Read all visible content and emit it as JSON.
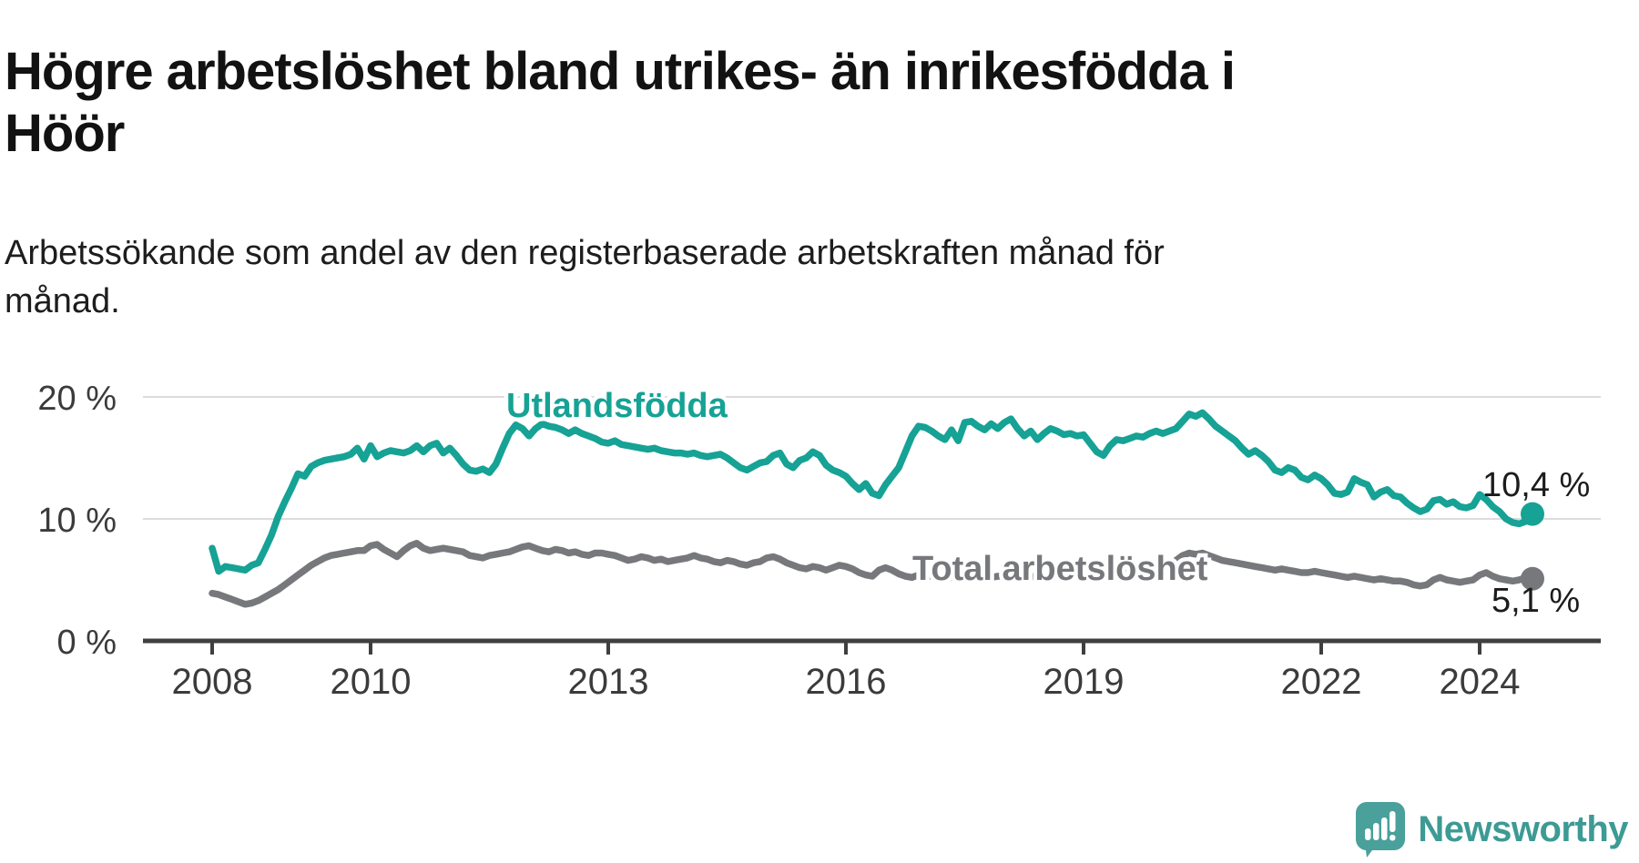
{
  "header": {
    "title": "Högre arbetslöshet bland utrikes- än inrikesfödda i Höör",
    "title_lines": [
      "Högre arbetslöshet bland utrikes- än inrikesfödda i",
      "Höör"
    ],
    "subtitle": "Arbetssökande som andel av den registerbaserade arbetskraften månad för månad.",
    "subtitle_lines": [
      "Arbetssökande som andel av den registerbaserade arbetskraften månad för",
      "månad."
    ]
  },
  "footer": {
    "brand": "Newsworthy",
    "brand_color": "#3d9a94",
    "logo_icon": "speech-bubble-bar-chart-exclamation"
  },
  "chart_data": {
    "type": "line",
    "title": "Högre arbetslöshet bland utrikes- än inrikesfödda i Höör",
    "subtitle": "Arbetssökande som andel av den registerbaserade arbetskraften månad för månad.",
    "x_unit": "month",
    "x_start": {
      "year": 2008,
      "month": 1
    },
    "x_end": {
      "year": 2024,
      "month": 9
    },
    "xlim": [
      2007.1,
      2025.5
    ],
    "ylim": [
      0,
      21.5
    ],
    "grid": "horizontal",
    "gridlines": [
      10,
      20
    ],
    "y_ticks": [
      {
        "value": 0,
        "label": "0 %"
      },
      {
        "value": 10,
        "label": "10 %"
      },
      {
        "value": 20,
        "label": "20 %"
      }
    ],
    "x_ticks": [
      {
        "year": 2008,
        "label": "2008"
      },
      {
        "year": 2010,
        "label": "2010"
      },
      {
        "year": 2013,
        "label": "2013"
      },
      {
        "year": 2016,
        "label": "2016"
      },
      {
        "year": 2019,
        "label": "2019"
      },
      {
        "year": 2022,
        "label": "2022"
      },
      {
        "year": 2024,
        "label": "2024"
      }
    ],
    "series": [
      {
        "name": "Utlandsfödda",
        "color": "#16a295",
        "end_label": "10,4 %",
        "end_value": 10.4,
        "values": [
          7.6,
          5.7,
          6.1,
          6.0,
          5.9,
          5.8,
          6.2,
          6.4,
          7.5,
          8.7,
          10.2,
          11.4,
          12.5,
          13.7,
          13.5,
          14.3,
          14.6,
          14.8,
          14.9,
          15.0,
          15.1,
          15.3,
          15.8,
          14.9,
          16.0,
          15.1,
          15.4,
          15.6,
          15.5,
          15.4,
          15.6,
          16.0,
          15.5,
          16.0,
          16.2,
          15.4,
          15.8,
          15.2,
          14.5,
          14.0,
          13.9,
          14.1,
          13.8,
          14.5,
          15.8,
          17.0,
          17.7,
          17.4,
          16.8,
          17.4,
          17.8,
          17.6,
          17.5,
          17.3,
          17.0,
          17.3,
          17.0,
          16.8,
          16.6,
          16.3,
          16.2,
          16.4,
          16.1,
          16.0,
          15.9,
          15.8,
          15.7,
          15.8,
          15.6,
          15.5,
          15.4,
          15.4,
          15.3,
          15.4,
          15.2,
          15.1,
          15.2,
          15.3,
          15.0,
          14.6,
          14.2,
          14.0,
          14.3,
          14.6,
          14.7,
          15.2,
          15.4,
          14.5,
          14.2,
          14.8,
          15.0,
          15.5,
          15.2,
          14.4,
          14.0,
          13.8,
          13.5,
          12.9,
          12.4,
          12.9,
          12.1,
          11.9,
          12.8,
          13.5,
          14.2,
          15.5,
          16.8,
          17.6,
          17.5,
          17.2,
          16.8,
          16.5,
          17.3,
          16.4,
          17.9,
          18.0,
          17.6,
          17.3,
          17.8,
          17.4,
          17.9,
          18.2,
          17.4,
          16.8,
          17.2,
          16.5,
          17.0,
          17.4,
          17.2,
          16.9,
          17.0,
          16.8,
          16.9,
          16.2,
          15.5,
          15.2,
          16.0,
          16.5,
          16.4,
          16.6,
          16.8,
          16.7,
          17.0,
          17.2,
          17.0,
          17.2,
          17.4,
          18.0,
          18.6,
          18.4,
          18.7,
          18.2,
          17.6,
          17.2,
          16.8,
          16.4,
          15.8,
          15.3,
          15.6,
          15.2,
          14.7,
          14.0,
          13.8,
          14.2,
          14.0,
          13.4,
          13.2,
          13.6,
          13.3,
          12.8,
          12.1,
          12.0,
          12.2,
          13.3,
          13.0,
          12.8,
          11.8,
          12.2,
          12.4,
          11.9,
          11.8,
          11.3,
          10.9,
          10.6,
          10.8,
          11.5,
          11.6,
          11.2,
          11.4,
          11.0,
          10.9,
          11.1,
          12.0,
          11.6,
          11.0,
          10.6,
          10.0,
          9.7,
          9.6,
          9.8,
          10.4
        ]
      },
      {
        "name": "Total arbetslöshet",
        "color": "#77787c",
        "end_label": "5,1 %",
        "end_value": 5.1,
        "values": [
          3.9,
          3.8,
          3.6,
          3.4,
          3.2,
          3.0,
          3.1,
          3.3,
          3.6,
          3.9,
          4.2,
          4.6,
          5.0,
          5.4,
          5.8,
          6.2,
          6.5,
          6.8,
          7.0,
          7.1,
          7.2,
          7.3,
          7.4,
          7.4,
          7.8,
          7.9,
          7.5,
          7.2,
          6.9,
          7.4,
          7.8,
          8.0,
          7.6,
          7.4,
          7.5,
          7.6,
          7.5,
          7.4,
          7.3,
          7.0,
          6.9,
          6.8,
          7.0,
          7.1,
          7.2,
          7.3,
          7.5,
          7.7,
          7.8,
          7.6,
          7.4,
          7.3,
          7.5,
          7.4,
          7.2,
          7.3,
          7.1,
          7.0,
          7.2,
          7.2,
          7.1,
          7.0,
          6.8,
          6.6,
          6.7,
          6.9,
          6.8,
          6.6,
          6.7,
          6.5,
          6.6,
          6.7,
          6.8,
          7.0,
          6.8,
          6.7,
          6.5,
          6.4,
          6.6,
          6.5,
          6.3,
          6.2,
          6.4,
          6.5,
          6.8,
          6.9,
          6.7,
          6.4,
          6.2,
          6.0,
          5.9,
          6.1,
          6.0,
          5.8,
          6.0,
          6.2,
          6.1,
          5.9,
          5.6,
          5.4,
          5.3,
          5.8,
          6.0,
          5.8,
          5.5,
          5.3,
          5.2,
          5.4,
          5.4,
          5.3,
          5.2,
          5.1,
          5.2,
          5.3,
          5.2,
          5.3,
          5.2,
          5.1,
          5.2,
          5.3,
          5.3,
          5.4,
          5.3,
          5.2,
          5.3,
          5.2,
          5.4,
          5.5,
          5.4,
          5.3,
          5.4,
          5.5,
          5.5,
          5.4,
          5.3,
          5.4,
          5.5,
          5.6,
          5.7,
          5.6,
          5.7,
          5.8,
          5.9,
          6.0,
          6.1,
          6.3,
          6.6,
          7.0,
          7.2,
          7.1,
          7.2,
          7.0,
          6.8,
          6.6,
          6.5,
          6.4,
          6.3,
          6.2,
          6.1,
          6.0,
          5.9,
          5.8,
          5.9,
          5.8,
          5.7,
          5.6,
          5.6,
          5.7,
          5.6,
          5.5,
          5.4,
          5.3,
          5.2,
          5.3,
          5.2,
          5.1,
          5.0,
          5.1,
          5.0,
          4.9,
          4.9,
          4.8,
          4.6,
          4.5,
          4.6,
          5.0,
          5.2,
          5.0,
          4.9,
          4.8,
          4.9,
          5.0,
          5.4,
          5.6,
          5.3,
          5.1,
          5.0,
          4.9,
          5.0,
          5.2,
          5.1
        ]
      }
    ]
  }
}
